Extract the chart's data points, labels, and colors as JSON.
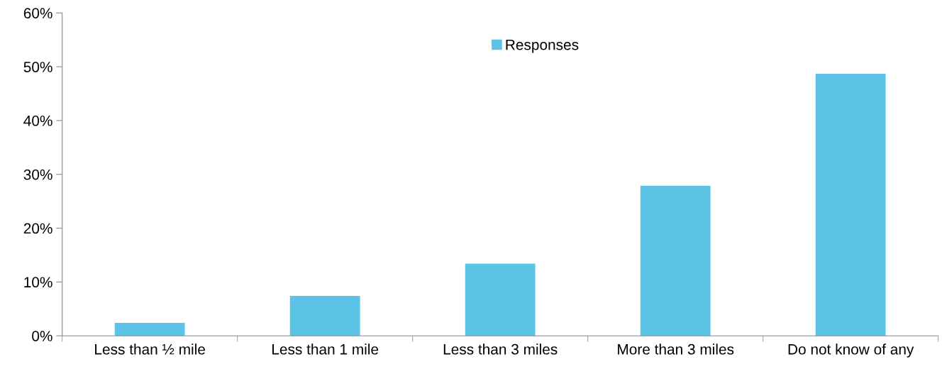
{
  "chart_data": {
    "type": "bar",
    "categories": [
      "Less than ½ mile",
      "Less than 1 mile",
      "Less than 3 miles",
      "More than 3 miles",
      "Do not know of any"
    ],
    "series": [
      {
        "name": "Responses",
        "color": "#5bc4e6",
        "values": [
          2.4,
          7.4,
          13.4,
          27.9,
          48.7
        ]
      }
    ],
    "ylim": [
      0,
      60
    ],
    "yticks": [
      {
        "value": 0,
        "label": "0%"
      },
      {
        "value": 10,
        "label": "10%"
      },
      {
        "value": 20,
        "label": "20%"
      },
      {
        "value": 30,
        "label": "30%"
      },
      {
        "value": 40,
        "label": "40%"
      },
      {
        "value": 50,
        "label": "50%"
      },
      {
        "value": 60,
        "label": "60%"
      }
    ],
    "grid": false,
    "legend": "top"
  }
}
